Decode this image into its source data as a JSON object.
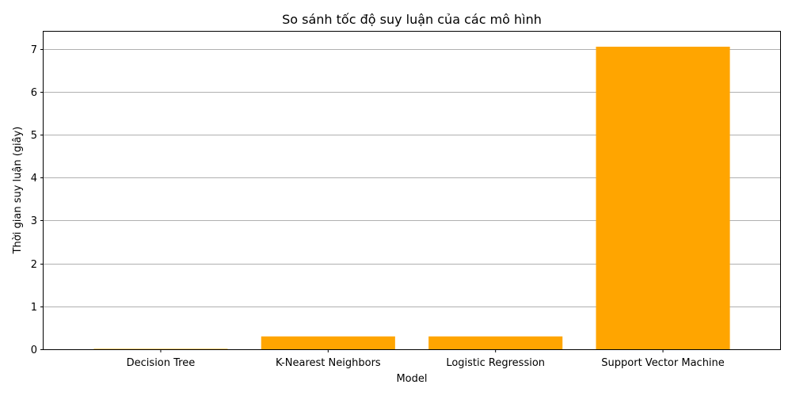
{
  "chart_data": {
    "type": "bar",
    "title": "So sánh tốc độ suy luận của các mô hình",
    "xlabel": "Model",
    "ylabel": "Thời gian suy luận (giây)",
    "categories": [
      "Decision Tree",
      "K-Nearest Neighbors",
      "Logistic Regression",
      "Support Vector Machine"
    ],
    "values": [
      0.01,
      0.3,
      0.3,
      7.05
    ],
    "ylim": [
      0,
      7.4
    ],
    "yticks": [
      0,
      1,
      2,
      3,
      4,
      5,
      6,
      7
    ],
    "grid": "y",
    "bar_color": "#ffa500"
  }
}
